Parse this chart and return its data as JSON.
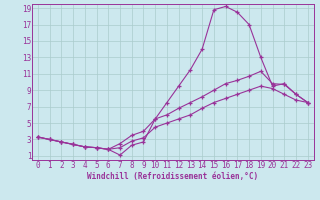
{
  "xlabel": "Windchill (Refroidissement éolien,°C)",
  "bg_color": "#cce8ee",
  "line_color": "#993399",
  "grid_color": "#aacccc",
  "xlim": [
    -0.5,
    23.5
  ],
  "ylim": [
    0.5,
    19.5
  ],
  "xticks": [
    0,
    1,
    2,
    3,
    4,
    5,
    6,
    7,
    8,
    9,
    10,
    11,
    12,
    13,
    14,
    15,
    16,
    17,
    18,
    19,
    20,
    21,
    22,
    23
  ],
  "yticks": [
    1,
    3,
    5,
    7,
    9,
    11,
    13,
    15,
    17,
    19
  ],
  "line1_x": [
    0,
    1,
    2,
    3,
    4,
    5,
    6,
    7,
    8,
    9,
    10,
    11,
    12,
    13,
    14,
    15,
    16,
    17,
    18,
    19,
    20,
    21,
    22,
    23
  ],
  "line1_y": [
    3.3,
    3.0,
    2.7,
    2.4,
    2.1,
    2.0,
    1.8,
    1.1,
    2.3,
    2.7,
    5.5,
    7.5,
    9.5,
    11.5,
    14.0,
    18.8,
    19.2,
    18.5,
    17.0,
    13.0,
    9.5,
    9.8,
    8.5,
    7.5
  ],
  "line2_x": [
    0,
    1,
    2,
    3,
    4,
    5,
    6,
    7,
    8,
    9,
    10,
    11,
    12,
    13,
    14,
    15,
    16,
    17,
    18,
    19,
    20,
    21,
    22,
    23
  ],
  "line2_y": [
    3.3,
    3.0,
    2.7,
    2.4,
    2.1,
    2.0,
    1.8,
    2.5,
    3.5,
    4.0,
    5.5,
    6.0,
    6.8,
    7.5,
    8.2,
    9.0,
    9.8,
    10.2,
    10.7,
    11.3,
    9.8,
    9.7,
    8.5,
    7.5
  ],
  "line3_x": [
    0,
    1,
    2,
    3,
    4,
    5,
    6,
    7,
    8,
    9,
    10,
    11,
    12,
    13,
    14,
    15,
    16,
    17,
    18,
    19,
    20,
    21,
    22,
    23
  ],
  "line3_y": [
    3.3,
    3.0,
    2.7,
    2.4,
    2.1,
    2.0,
    1.8,
    2.0,
    2.8,
    3.2,
    4.5,
    5.0,
    5.5,
    6.0,
    6.8,
    7.5,
    8.0,
    8.5,
    9.0,
    9.5,
    9.2,
    8.5,
    7.8,
    7.5
  ],
  "xlabel_fontsize": 5.5,
  "tick_fontsize": 5.5
}
